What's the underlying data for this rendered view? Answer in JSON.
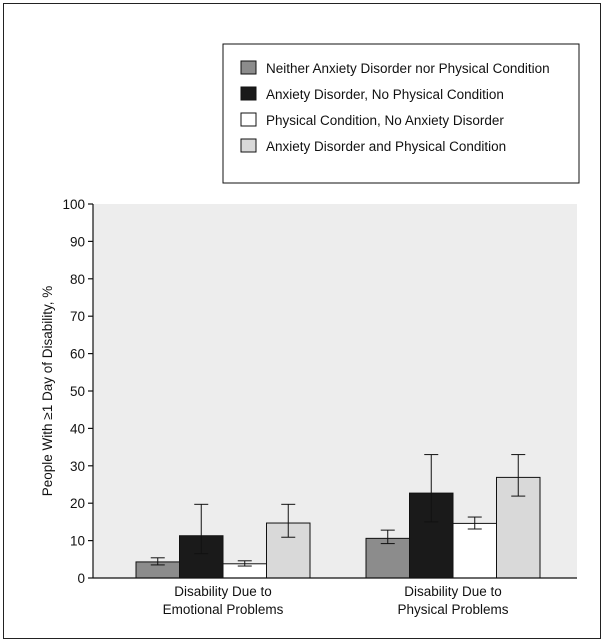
{
  "chart_data": {
    "type": "bar",
    "categories": [
      "Disability Due to\nEmotional Problems",
      "Disability Due to\nPhysical Problems"
    ],
    "series": [
      {
        "name": "Neither Anxiety Disorder nor Physical Condition",
        "color": "#8c8c8c",
        "values": [
          4.3,
          10.6
        ],
        "error_low": [
          3.5,
          9.2
        ],
        "error_high": [
          5.4,
          12.8
        ]
      },
      {
        "name": "Anxiety Disorder, No Physical Condition",
        "color": "#1a1a1a",
        "values": [
          11.3,
          22.7
        ],
        "error_low": [
          6.5,
          15.0
        ],
        "error_high": [
          19.7,
          33.0
        ]
      },
      {
        "name": "Physical Condition, No Anxiety Disorder",
        "color": "#ffffff",
        "values": [
          3.8,
          14.6
        ],
        "error_low": [
          3.2,
          13.1
        ],
        "error_high": [
          4.6,
          16.3
        ]
      },
      {
        "name": "Anxiety Disorder and Physical Condition",
        "color": "#d9d9d9",
        "values": [
          14.7,
          26.9
        ],
        "error_low": [
          10.9,
          21.9
        ],
        "error_high": [
          19.7,
          33.0
        ]
      }
    ],
    "ylabel": "People With ≥1 Day of Disability, %",
    "xlabel": "",
    "ylim": [
      0,
      100
    ],
    "yticks": [
      0,
      10,
      20,
      30,
      40,
      50,
      60,
      70,
      80,
      90,
      100
    ],
    "plot_background": "#ededed",
    "grid": false,
    "legend_position": "top-right"
  }
}
